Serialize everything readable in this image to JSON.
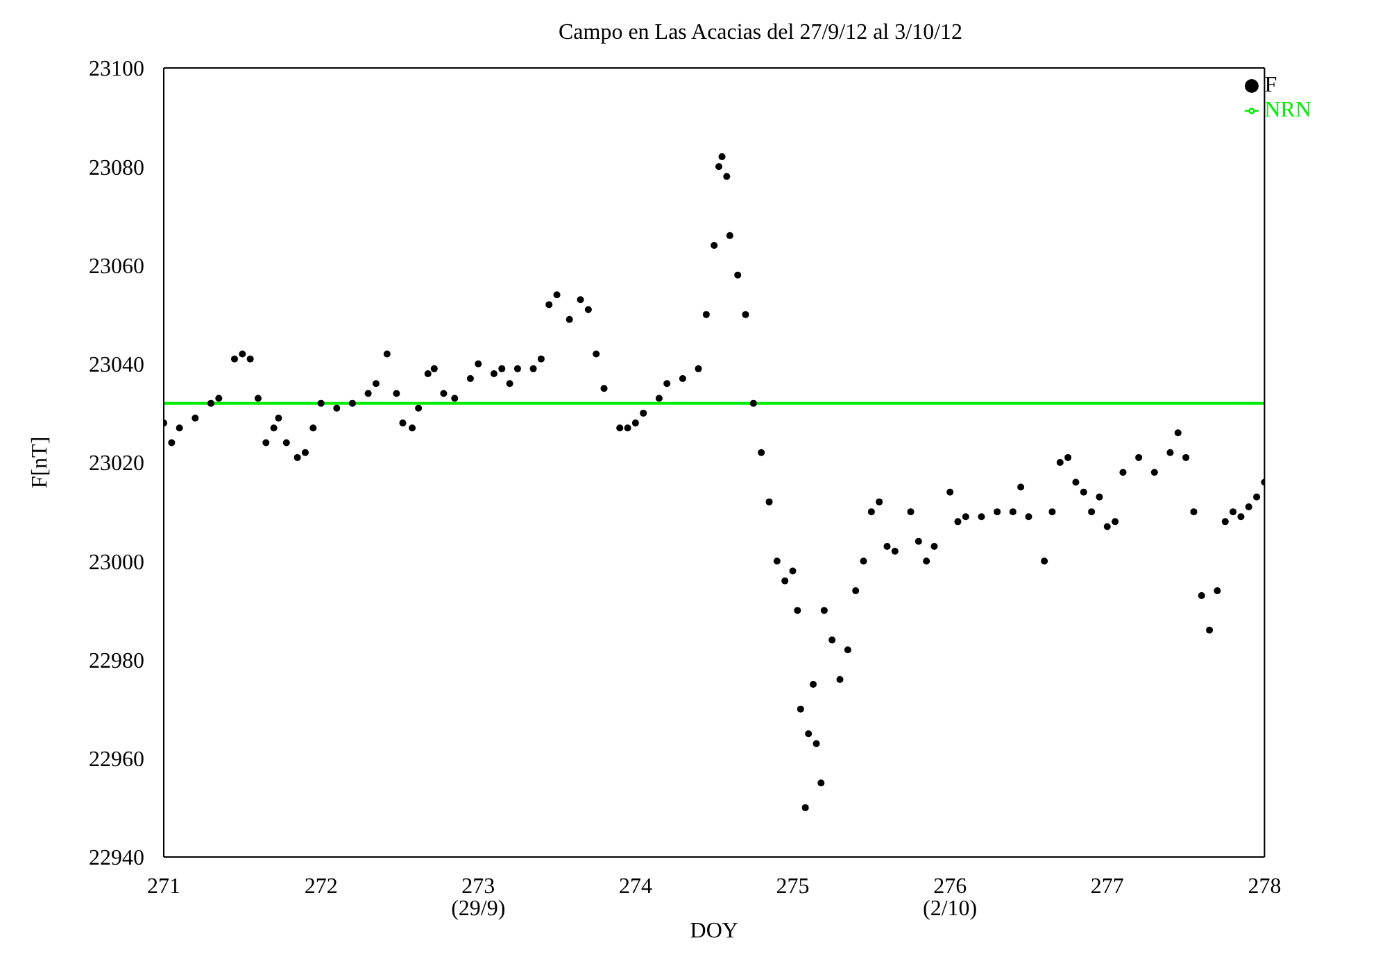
{
  "chart_data": {
    "type": "scatter",
    "title": "Campo en Las Acacias del 27/9/12 al 3/10/12",
    "xlabel": "DOY",
    "ylabel": "F[nT]",
    "xlim": [
      271,
      278
    ],
    "xticks": [
      271,
      272,
      {
        "value": 273,
        "label": "273\n(29/9)"
      },
      274,
      275,
      {
        "value": 276,
        "label": "276\n(2/10)"
      },
      277,
      278
    ],
    "ylim": [
      22940,
      23100
    ],
    "yticks": [
      22940,
      22960,
      22980,
      23000,
      23020,
      23040,
      23060,
      23080,
      23100
    ],
    "grid": false,
    "legend": "top right",
    "series": [
      {
        "name": "F",
        "marker": "circle",
        "color": "#000000",
        "x": [
          271.0,
          271.05,
          271.1,
          271.2,
          271.3,
          271.35,
          271.45,
          271.5,
          271.55,
          271.6,
          271.65,
          271.7,
          271.73,
          271.78,
          271.85,
          271.9,
          271.95,
          272.0,
          272.1,
          272.2,
          272.3,
          272.35,
          272.42,
          272.48,
          272.52,
          272.58,
          272.62,
          272.68,
          272.72,
          272.78,
          272.85,
          272.95,
          273.0,
          273.1,
          273.15,
          273.2,
          273.25,
          273.35,
          273.4,
          273.45,
          273.5,
          273.58,
          273.65,
          273.7,
          273.75,
          273.8,
          273.9,
          273.95,
          274.0,
          274.05,
          274.15,
          274.2,
          274.3,
          274.4,
          274.45,
          274.5,
          274.53,
          274.55,
          274.58,
          274.6,
          274.65,
          274.7,
          274.75,
          274.8,
          274.85,
          274.9,
          274.95,
          275.0,
          275.03,
          275.05,
          275.08,
          275.1,
          275.13,
          275.15,
          275.18,
          275.2,
          275.25,
          275.3,
          275.35,
          275.4,
          275.45,
          275.5,
          275.55,
          275.6,
          275.65,
          275.75,
          275.8,
          275.85,
          275.9,
          276.0,
          276.05,
          276.1,
          276.2,
          276.3,
          276.4,
          276.45,
          276.5,
          276.6,
          276.65,
          276.7,
          276.75,
          276.8,
          276.85,
          276.9,
          276.95,
          277.0,
          277.05,
          277.1,
          277.2,
          277.3,
          277.4,
          277.45,
          277.5,
          277.55,
          277.6,
          277.65,
          277.7,
          277.75,
          277.8,
          277.85,
          277.9,
          277.95,
          278.0
        ],
        "values": [
          23028,
          23024,
          23027,
          23029,
          23032,
          23033,
          23041,
          23042,
          23041,
          23033,
          23024,
          23027,
          23029,
          23024,
          23021,
          23022,
          23027,
          23032,
          23031,
          23032,
          23034,
          23036,
          23042,
          23034,
          23028,
          23027,
          23031,
          23038,
          23039,
          23034,
          23033,
          23037,
          23040,
          23038,
          23039,
          23036,
          23039,
          23039,
          23041,
          23052,
          23054,
          23049,
          23053,
          23051,
          23042,
          23035,
          23027,
          23027,
          23028,
          23030,
          23033,
          23036,
          23037,
          23039,
          23050,
          23064,
          23080,
          23082,
          23078,
          23066,
          23058,
          23050,
          23032,
          23022,
          23012,
          23000,
          22996,
          22998,
          22990,
          22970,
          22950,
          22965,
          22975,
          22963,
          22955,
          22990,
          22984,
          22976,
          22982,
          22994,
          23000,
          23010,
          23012,
          23003,
          23002,
          23010,
          23004,
          23000,
          23003,
          23014,
          23008,
          23009,
          23009,
          23010,
          23010,
          23015,
          23009,
          23000,
          23010,
          23020,
          23021,
          23016,
          23014,
          23010,
          23013,
          23007,
          23008,
          23018,
          23021,
          23018,
          23022,
          23026,
          23021,
          23010,
          22993,
          22986,
          22994,
          23008,
          23010,
          23009,
          23011,
          23013,
          23016
        ]
      },
      {
        "name": "NRN",
        "type": "line",
        "marker": "none",
        "color": "#00ee00",
        "x": [
          271,
          278
        ],
        "values": [
          23032,
          23032
        ]
      }
    ]
  }
}
